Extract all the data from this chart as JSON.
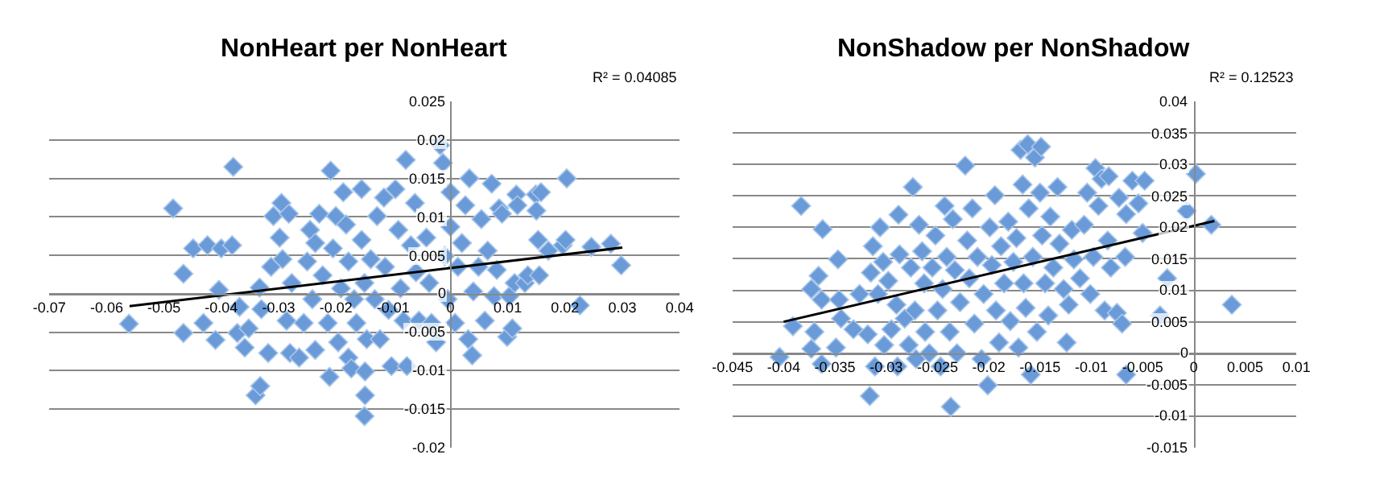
{
  "chart_data": [
    {
      "type": "scatter",
      "title": "NonHeart per NonHeart",
      "annotations": [
        "R² = 0.04085"
      ],
      "xlim": [
        -0.07,
        0.04
      ],
      "ylim": [
        -0.02,
        0.025
      ],
      "xticks": [
        -0.07,
        -0.06,
        -0.05,
        -0.04,
        -0.03,
        -0.02,
        -0.01,
        0,
        0.01,
        0.02,
        0.03,
        0.04
      ],
      "yticks": [
        -0.02,
        -0.015,
        -0.01,
        -0.005,
        0,
        0.005,
        0.01,
        0.015,
        0.02,
        0.025
      ],
      "grid": "y",
      "marker": "diamond",
      "series": [
        {
          "type": "scatter",
          "color": "#6a9bd8",
          "x": [
            -0.0561,
            -0.0484,
            -0.0466,
            -0.0466,
            -0.0449,
            -0.0431,
            -0.0424,
            -0.041,
            -0.0404,
            -0.04,
            -0.0379,
            -0.0381,
            -0.0372,
            -0.0359,
            -0.0368,
            -0.0352,
            -0.034,
            -0.0332,
            -0.0333,
            -0.033,
            -0.0318,
            -0.0313,
            -0.0309,
            -0.0295,
            -0.0298,
            -0.0293,
            -0.0286,
            -0.028,
            -0.0282,
            -0.0277,
            -0.0264,
            -0.0256,
            -0.025,
            -0.0245,
            -0.0236,
            -0.0241,
            -0.0236,
            -0.0229,
            -0.0223,
            -0.0214,
            -0.0209,
            -0.0211,
            -0.0205,
            -0.02,
            -0.0196,
            -0.0191,
            -0.0187,
            -0.0182,
            -0.0178,
            -0.0178,
            -0.0173,
            -0.0168,
            -0.0164,
            -0.0155,
            -0.0155,
            -0.015,
            -0.015,
            -0.0149,
            -0.0149,
            -0.0146,
            -0.0139,
            -0.0132,
            -0.0128,
            -0.0123,
            -0.0116,
            -0.0114,
            -0.0108,
            -0.0103,
            -0.0096,
            -0.0091,
            -0.0087,
            -0.0082,
            -0.0078,
            -0.0076,
            -0.0069,
            -0.0062,
            -0.006,
            -0.0055,
            -0.0042,
            -0.0037,
            -0.0033,
            -0.0025,
            -0.0018,
            -0.0013,
            -0.001,
            -0.0005,
            0,
            0,
            0.0008,
            0.0013,
            0.002,
            0.0026,
            0.0031,
            0.0033,
            0.0038,
            0.004,
            0.0049,
            0.0054,
            0.006,
            0.0065,
            0.0072,
            0.0076,
            0.0081,
            0.0085,
            0.009,
            0.0099,
            0.0103,
            0.0108,
            0.0112,
            0.0115,
            0.0117,
            0.013,
            0.0135,
            0.0149,
            0.015,
            0.0153,
            0.0158,
            0.0155,
            0.0171,
            0.0196,
            0.0201,
            0.0203,
            0.0226,
            0.0246,
            0.028,
            0.0298
          ],
          "values": [
            -0.0039,
            0.0111,
            0.0026,
            -0.0051,
            0.0059,
            -0.0038,
            0.0063,
            -0.006,
            0.0005,
            0.0059,
            0.0165,
            0.0063,
            -0.0051,
            -0.007,
            -0.0017,
            -0.0045,
            -0.0132,
            -0.012,
            0.0008,
            -0.002,
            -0.0077,
            0.0035,
            0.0101,
            0.0118,
            0.0073,
            0.0045,
            -0.0035,
            -0.0077,
            0.0104,
            0.0014,
            -0.0083,
            -0.0038,
            0.0042,
            0.0083,
            0.0066,
            -0.0007,
            -0.0073,
            0.0104,
            0.0024,
            -0.0038,
            0.016,
            -0.0108,
            0.0059,
            0.0101,
            -0.0063,
            0.0007,
            0.0132,
            0.009,
            0.0042,
            -0.0083,
            -0.0097,
            -0.0007,
            -0.0038,
            0.0136,
            0.007,
            0.0014,
            -0.0159,
            -0.0101,
            -0.0132,
            -0.0059,
            0.0045,
            -0.0007,
            0.0101,
            -0.0059,
            0.0125,
            0.0035,
            -0.0021,
            -0.0094,
            0.0136,
            0.0083,
            0.0007,
            -0.0035,
            0.0174,
            -0.0094,
            0.0063,
            0.0118,
            0.0028,
            -0.0035,
            0.0073,
            0.0014,
            -0.0038,
            -0.0063,
            0.0193,
            0.017,
            0.0049,
            -0.0007,
            0.0132,
            0.0087,
            -0.0038,
            0.0035,
            0.0066,
            0.0115,
            -0.0059,
            0.015,
            -0.008,
            0.0003,
            0.0035,
            0.0097,
            -0.0035,
            0.0056,
            0.0143,
            -0.0003,
            0.0031,
            0.0111,
            0.0104,
            -0.0056,
            -0.0003,
            -0.0045,
            0.0014,
            0.0129,
            0.0115,
            0.0014,
            0.0024,
            0.0129,
            0.0108,
            0.007,
            0.0132,
            0.0024,
            0.0056,
            0.0063,
            0.007,
            0.015,
            -0.0015,
            0.0061,
            0.0065,
            0.0037
          ]
        },
        {
          "type": "line",
          "color": "#000000",
          "marker": "none",
          "x": [
            -0.056,
            0.03
          ],
          "values": [
            -0.0016,
            0.006
          ]
        }
      ]
    },
    {
      "type": "scatter",
      "title": "NonShadow per NonShadow",
      "annotations": [
        "R² = 0.12523"
      ],
      "xlim": [
        -0.045,
        0.01
      ],
      "ylim": [
        -0.015,
        0.04
      ],
      "xticks": [
        -0.045,
        -0.04,
        -0.035,
        -0.03,
        -0.025,
        -0.02,
        -0.015,
        -0.01,
        -0.005,
        0,
        0.005,
        0.01
      ],
      "yticks": [
        -0.015,
        -0.01,
        -0.005,
        0,
        0.005,
        0.01,
        0.015,
        0.02,
        0.025,
        0.03,
        0.035,
        0.04
      ],
      "grid": "y",
      "marker": "diamond",
      "series": [
        {
          "type": "scatter",
          "color": "#6a9bd8",
          "x": [
            -0.0404,
            -0.0391,
            -0.0383,
            -0.0373,
            -0.0373,
            -0.037,
            -0.0366,
            -0.0363,
            -0.0362,
            -0.0363,
            -0.0349,
            -0.0347,
            -0.0346,
            -0.0344,
            -0.0332,
            -0.0326,
            -0.0318,
            -0.0316,
            -0.0315,
            -0.0313,
            -0.0311,
            -0.0308,
            -0.0306,
            -0.0303,
            -0.0302,
            -0.0298,
            -0.0295,
            -0.029,
            -0.0289,
            -0.0288,
            -0.0287,
            -0.0282,
            -0.0278,
            -0.0276,
            -0.0274,
            -0.0272,
            -0.0271,
            -0.0268,
            -0.0265,
            -0.0263,
            -0.0262,
            -0.0258,
            -0.0255,
            -0.0252,
            -0.025,
            -0.0247,
            -0.0245,
            -0.0243,
            -0.0241,
            -0.0238,
            -0.0237,
            -0.0235,
            -0.0233,
            -0.0231,
            -0.0228,
            -0.0223,
            -0.0221,
            -0.0219,
            -0.0216,
            -0.0214,
            -0.0211,
            -0.0207,
            -0.0205,
            -0.0201,
            -0.0199,
            -0.0197,
            -0.0194,
            -0.0193,
            -0.019,
            -0.0188,
            -0.0185,
            -0.0181,
            -0.0179,
            -0.0176,
            -0.0173,
            -0.0171,
            -0.0169,
            -0.0167,
            -0.0166,
            -0.0164,
            -0.0162,
            -0.0161,
            -0.0159,
            -0.0157,
            -0.0155,
            -0.0153,
            -0.015,
            -0.0149,
            -0.0148,
            -0.0145,
            -0.0142,
            -0.014,
            -0.0137,
            -0.0133,
            -0.0131,
            -0.0127,
            -0.0124,
            -0.0122,
            -0.0119,
            -0.0117,
            -0.0111,
            -0.0107,
            -0.0104,
            -0.0101,
            -0.0098,
            -0.0096,
            -0.0093,
            -0.009,
            -0.0087,
            -0.0084,
            -0.0083,
            -0.0081,
            -0.0075,
            -0.0073,
            -0.007,
            -0.0067,
            -0.0066,
            -0.0066,
            -0.006,
            -0.0054,
            -0.005,
            -0.0048,
            -0.0033,
            -0.0026,
            -0.0007,
            0.0002,
            0.0017,
            0.0037
          ],
          "values": [
            -0.0006,
            0.0043,
            0.0234,
            0.0007,
            0.0102,
            0.0034,
            0.0123,
            0.0085,
            0.0197,
            -0.0017,
            0.0009,
            0.0149,
            0.0085,
            0.0055,
            0.0038,
            0.0094,
            0.003,
            -0.0068,
            0.0128,
            0.017,
            -0.0021,
            0.0094,
            0.02,
            0.0145,
            0.0013,
            0.0115,
            0.0038,
            0.0077,
            -0.0021,
            0.022,
            0.0157,
            0.0055,
            0.0013,
            0.0136,
            0.0264,
            0.0068,
            -0.0009,
            0.0204,
            0.0162,
            0.0111,
            0.0034,
            0,
            0.0136,
            0.0187,
            0.0068,
            -0.0021,
            0.0102,
            0.0234,
            0.0153,
            0.0034,
            -0.0085,
            0.0213,
            0.0132,
            0,
            0.0081,
            0.0298,
            0.0179,
            0.0119,
            0.023,
            0.0047,
            0.0153,
            -0.0009,
            0.0094,
            -0.0051,
            0.02,
            0.014,
            0.0251,
            0.0068,
            0.0017,
            0.017,
            0.0111,
            0.0209,
            0.0051,
            0.0145,
            0.0183,
            0.0009,
            0.0323,
            0.0268,
            0.0111,
            0.0072,
            0.0332,
            0.023,
            -0.0034,
            0.0153,
            0.0311,
            0.0034,
            0.0255,
            0.0328,
            0.0187,
            0.0111,
            0.006,
            0.0217,
            0.0136,
            0.0264,
            0.0174,
            0.0102,
            0.0017,
            0.0077,
            0.0196,
            0.0149,
            0.0119,
            0.0204,
            0.0255,
            0.0094,
            0.0153,
            0.0294,
            0.0234,
            0.0277,
            0.0068,
            0.0179,
            0.0281,
            0.0136,
            0.0064,
            0.0247,
            0.0047,
            0.0153,
            0.0221,
            -0.0034,
            0.0274,
            0.0238,
            0.0191,
            0.0274,
            0.006,
            0.0119,
            0.0226,
            0.0285,
            0.0204,
            0.0077
          ]
        },
        {
          "type": "line",
          "color": "#000000",
          "marker": "none",
          "x": [
            -0.04,
            0.002
          ],
          "values": [
            0.005,
            0.021
          ]
        }
      ]
    }
  ]
}
